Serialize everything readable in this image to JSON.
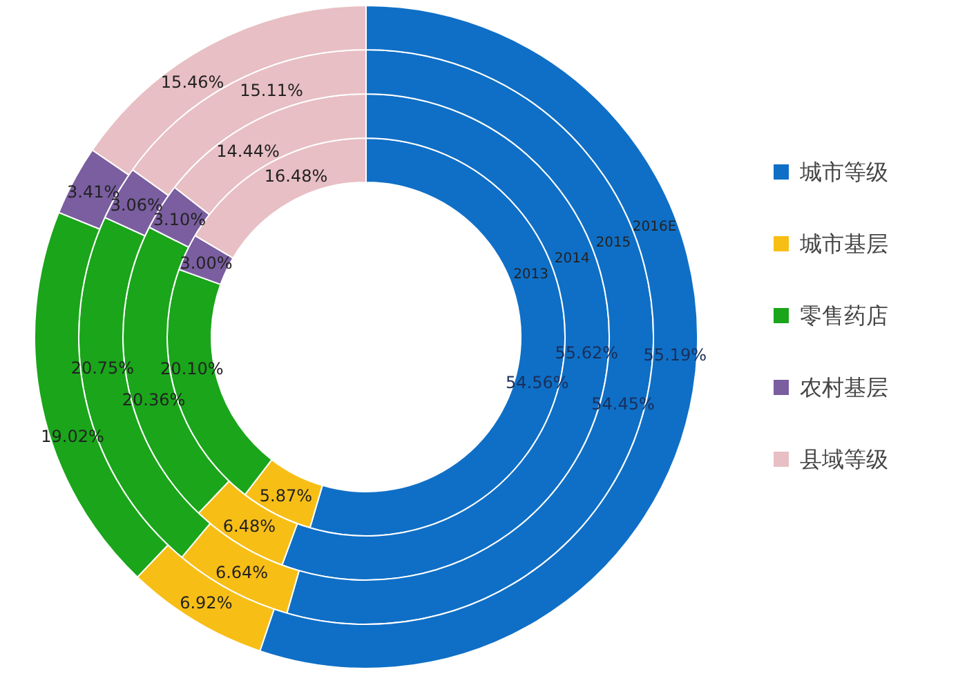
{
  "chart_data": {
    "type": "donut",
    "categories": [
      "城市等级",
      "城市基层",
      "零售药店",
      "农村基层",
      "县域等级"
    ],
    "colors": [
      "#0f6fc6",
      "#f7be16",
      "#1aa51a",
      "#7a5ea0",
      "#e8bfc4"
    ],
    "series": [
      {
        "name": "2013",
        "values": [
          54.56,
          5.87,
          20.1,
          3.0,
          16.48
        ],
        "value_labels": [
          "54.56%",
          "5.87%",
          "20.10%",
          "3.00%",
          "16.48%"
        ]
      },
      {
        "name": "2014",
        "values": [
          55.62,
          6.48,
          20.36,
          3.1,
          14.44
        ],
        "value_labels": [
          "55.62%",
          "6.48%",
          "20.36%",
          "3.10%",
          "14.44%"
        ]
      },
      {
        "name": "2015",
        "values": [
          54.45,
          6.64,
          20.75,
          3.06,
          15.11
        ],
        "value_labels": [
          "54.45%",
          "6.64%",
          "20.75%",
          "3.06%",
          "15.11%"
        ]
      },
      {
        "name": "2016E",
        "values": [
          55.19,
          6.92,
          19.02,
          3.41,
          15.46
        ],
        "value_labels": [
          "55.19%",
          "6.92%",
          "19.02%",
          "3.41%",
          "15.46%"
        ]
      }
    ],
    "legend": "right"
  }
}
